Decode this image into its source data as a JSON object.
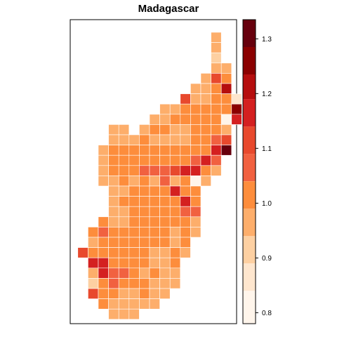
{
  "title": "Madagascar",
  "legend": {
    "ticks": [
      {
        "value": 0.8,
        "label": "0.8"
      },
      {
        "value": 0.9,
        "label": "0.9"
      },
      {
        "value": 1.0,
        "label": "1.0"
      },
      {
        "value": 1.1,
        "label": "1.1"
      },
      {
        "value": 1.2,
        "label": "1.2"
      },
      {
        "value": 1.3,
        "label": "1.3"
      }
    ],
    "range": [
      0.78,
      1.335
    ],
    "breaks": [
      0.78,
      0.84,
      0.89,
      0.94,
      0.99,
      1.04,
      1.09,
      1.14,
      1.19,
      1.235,
      1.285,
      1.335
    ],
    "colors": [
      "#fff5eb",
      "#fee6ce",
      "#fdd0a2",
      "#fdae6b",
      "#fd8d3c",
      "#f16140",
      "#e8492d",
      "#d42020",
      "#b50e0e",
      "#8b0000",
      "#67000d"
    ]
  },
  "grid": {
    "columns": 15,
    "rows": 27,
    "cells": [
      [
        11,
        0,
        3
      ],
      [
        11,
        1,
        3
      ],
      [
        11,
        2,
        2
      ],
      [
        11,
        3,
        3
      ],
      [
        12,
        3,
        3
      ],
      [
        10,
        4,
        3
      ],
      [
        11,
        4,
        6
      ],
      [
        12,
        4,
        4
      ],
      [
        9,
        5,
        3
      ],
      [
        10,
        5,
        3
      ],
      [
        11,
        5,
        4
      ],
      [
        12,
        5,
        8
      ],
      [
        8,
        6,
        6
      ],
      [
        9,
        6,
        3
      ],
      [
        10,
        6,
        3
      ],
      [
        11,
        6,
        4
      ],
      [
        12,
        6,
        4
      ],
      [
        13,
        6,
        1
      ],
      [
        6,
        7,
        3
      ],
      [
        7,
        7,
        3
      ],
      [
        8,
        7,
        4
      ],
      [
        9,
        7,
        4
      ],
      [
        10,
        7,
        4
      ],
      [
        11,
        7,
        4
      ],
      [
        12,
        7,
        4
      ],
      [
        13,
        7,
        9
      ],
      [
        5,
        8,
        3
      ],
      [
        6,
        8,
        3
      ],
      [
        7,
        8,
        4
      ],
      [
        8,
        8,
        4
      ],
      [
        9,
        8,
        4
      ],
      [
        10,
        8,
        4
      ],
      [
        11,
        8,
        4
      ],
      [
        12,
        8,
        0
      ],
      [
        13,
        8,
        7
      ],
      [
        1,
        9,
        3
      ],
      [
        2,
        9,
        3
      ],
      [
        4,
        9,
        3
      ],
      [
        5,
        9,
        4
      ],
      [
        6,
        9,
        4
      ],
      [
        7,
        9,
        3
      ],
      [
        8,
        9,
        3
      ],
      [
        9,
        9,
        4
      ],
      [
        10,
        9,
        4
      ],
      [
        11,
        9,
        4
      ],
      [
        12,
        9,
        3
      ],
      [
        1,
        10,
        3
      ],
      [
        2,
        10,
        3
      ],
      [
        3,
        10,
        3
      ],
      [
        4,
        10,
        4
      ],
      [
        5,
        10,
        3
      ],
      [
        6,
        10,
        3
      ],
      [
        7,
        10,
        3
      ],
      [
        8,
        10,
        3
      ],
      [
        9,
        10,
        4
      ],
      [
        10,
        10,
        4
      ],
      [
        11,
        10,
        5
      ],
      [
        12,
        10,
        6
      ],
      [
        0,
        11,
        3
      ],
      [
        1,
        11,
        4
      ],
      [
        2,
        11,
        4
      ],
      [
        3,
        11,
        4
      ],
      [
        4,
        11,
        4
      ],
      [
        5,
        11,
        4
      ],
      [
        6,
        11,
        4
      ],
      [
        7,
        11,
        4
      ],
      [
        8,
        11,
        4
      ],
      [
        9,
        11,
        4
      ],
      [
        10,
        11,
        4
      ],
      [
        11,
        11,
        7
      ],
      [
        12,
        11,
        10
      ],
      [
        0,
        12,
        3
      ],
      [
        1,
        12,
        4
      ],
      [
        2,
        12,
        4
      ],
      [
        3,
        12,
        4
      ],
      [
        4,
        12,
        4
      ],
      [
        5,
        12,
        4
      ],
      [
        6,
        12,
        4
      ],
      [
        7,
        12,
        4
      ],
      [
        8,
        12,
        4
      ],
      [
        9,
        12,
        5
      ],
      [
        10,
        12,
        7
      ],
      [
        11,
        12,
        5
      ],
      [
        0,
        13,
        3
      ],
      [
        1,
        13,
        4
      ],
      [
        2,
        13,
        4
      ],
      [
        3,
        13,
        4
      ],
      [
        4,
        13,
        5
      ],
      [
        5,
        13,
        5
      ],
      [
        6,
        13,
        5
      ],
      [
        7,
        13,
        6
      ],
      [
        8,
        13,
        7
      ],
      [
        9,
        13,
        7
      ],
      [
        10,
        13,
        4
      ],
      [
        11,
        13,
        3
      ],
      [
        0,
        14,
        3
      ],
      [
        1,
        14,
        3
      ],
      [
        2,
        14,
        4
      ],
      [
        3,
        14,
        3
      ],
      [
        4,
        14,
        4
      ],
      [
        5,
        14,
        3
      ],
      [
        6,
        14,
        5
      ],
      [
        7,
        14,
        3
      ],
      [
        8,
        14,
        4
      ],
      [
        9,
        14,
        0
      ],
      [
        10,
        14,
        3
      ],
      [
        1,
        15,
        3
      ],
      [
        2,
        15,
        3
      ],
      [
        3,
        15,
        4
      ],
      [
        4,
        15,
        4
      ],
      [
        5,
        15,
        4
      ],
      [
        6,
        15,
        4
      ],
      [
        7,
        15,
        7
      ],
      [
        8,
        15,
        4
      ],
      [
        9,
        15,
        4
      ],
      [
        1,
        16,
        3
      ],
      [
        2,
        16,
        4
      ],
      [
        3,
        16,
        4
      ],
      [
        4,
        16,
        4
      ],
      [
        5,
        16,
        4
      ],
      [
        6,
        16,
        4
      ],
      [
        7,
        16,
        4
      ],
      [
        8,
        16,
        7
      ],
      [
        9,
        16,
        4
      ],
      [
        1,
        17,
        3
      ],
      [
        2,
        17,
        3
      ],
      [
        3,
        17,
        4
      ],
      [
        4,
        17,
        4
      ],
      [
        5,
        17,
        4
      ],
      [
        6,
        17,
        4
      ],
      [
        7,
        17,
        4
      ],
      [
        8,
        17,
        5
      ],
      [
        9,
        17,
        5
      ],
      [
        0,
        18,
        4
      ],
      [
        1,
        18,
        3
      ],
      [
        2,
        18,
        3
      ],
      [
        3,
        18,
        4
      ],
      [
        4,
        18,
        4
      ],
      [
        5,
        18,
        4
      ],
      [
        6,
        18,
        4
      ],
      [
        7,
        18,
        4
      ],
      [
        8,
        18,
        4
      ],
      [
        9,
        18,
        3
      ],
      [
        -1,
        19,
        4
      ],
      [
        0,
        19,
        5
      ],
      [
        1,
        19,
        4
      ],
      [
        2,
        19,
        4
      ],
      [
        3,
        19,
        4
      ],
      [
        4,
        19,
        4
      ],
      [
        5,
        19,
        4
      ],
      [
        6,
        19,
        4
      ],
      [
        7,
        19,
        3
      ],
      [
        8,
        19,
        4
      ],
      [
        9,
        19,
        3
      ],
      [
        -1,
        20,
        3
      ],
      [
        0,
        20,
        4
      ],
      [
        1,
        20,
        4
      ],
      [
        2,
        20,
        4
      ],
      [
        3,
        20,
        4
      ],
      [
        4,
        20,
        4
      ],
      [
        5,
        20,
        4
      ],
      [
        6,
        20,
        4
      ],
      [
        7,
        20,
        3
      ],
      [
        8,
        20,
        4
      ],
      [
        -2,
        21,
        6
      ],
      [
        -1,
        21,
        4
      ],
      [
        0,
        21,
        4
      ],
      [
        1,
        21,
        4
      ],
      [
        2,
        21,
        4
      ],
      [
        3,
        21,
        4
      ],
      [
        4,
        21,
        4
      ],
      [
        5,
        21,
        3
      ],
      [
        6,
        21,
        3
      ],
      [
        7,
        21,
        4
      ],
      [
        8,
        21,
        3
      ],
      [
        -1,
        22,
        7
      ],
      [
        0,
        22,
        7
      ],
      [
        1,
        22,
        4
      ],
      [
        2,
        22,
        4
      ],
      [
        3,
        22,
        4
      ],
      [
        4,
        22,
        4
      ],
      [
        5,
        22,
        3
      ],
      [
        6,
        22,
        3
      ],
      [
        7,
        22,
        4
      ],
      [
        -1,
        23,
        3
      ],
      [
        0,
        23,
        7
      ],
      [
        1,
        23,
        5
      ],
      [
        2,
        23,
        5
      ],
      [
        3,
        23,
        4
      ],
      [
        4,
        23,
        3
      ],
      [
        5,
        23,
        4
      ],
      [
        6,
        23,
        3
      ],
      [
        7,
        23,
        3
      ],
      [
        -1,
        24,
        2
      ],
      [
        0,
        24,
        4
      ],
      [
        1,
        24,
        5
      ],
      [
        2,
        24,
        4
      ],
      [
        3,
        24,
        4
      ],
      [
        4,
        24,
        4
      ],
      [
        5,
        24,
        3
      ],
      [
        6,
        24,
        3
      ],
      [
        7,
        24,
        3
      ],
      [
        -1,
        25,
        6
      ],
      [
        0,
        25,
        4
      ],
      [
        1,
        25,
        4
      ],
      [
        2,
        25,
        3
      ],
      [
        3,
        25,
        3
      ],
      [
        4,
        25,
        4
      ],
      [
        5,
        25,
        3
      ],
      [
        6,
        25,
        3
      ],
      [
        0,
        26,
        4
      ],
      [
        1,
        26,
        3
      ],
      [
        2,
        26,
        3
      ],
      [
        3,
        26,
        3
      ],
      [
        4,
        26,
        3
      ],
      [
        5,
        26,
        3
      ],
      [
        1,
        27,
        3
      ],
      [
        2,
        27,
        3
      ],
      [
        3,
        27,
        3
      ]
    ]
  }
}
